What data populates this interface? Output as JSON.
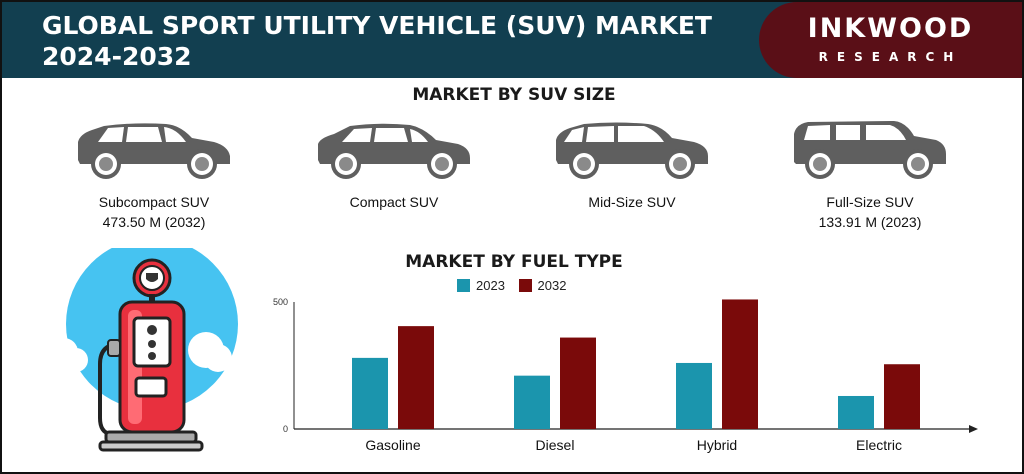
{
  "header": {
    "title": "GLOBAL SPORT UTILITY VEHICLE (SUV) MARKET 2024-2032"
  },
  "logo": {
    "name": "INKWOOD",
    "subtitle": "RESEARCH"
  },
  "suv_size": {
    "title": "MARKET BY SUV SIZE",
    "items": [
      {
        "name": "Subcompact SUV",
        "value": "473.50 M (2032)",
        "icon": "subcompact-suv-icon"
      },
      {
        "name": "Compact SUV",
        "value": "",
        "icon": "compact-suv-icon"
      },
      {
        "name": "Mid-Size SUV",
        "value": "",
        "icon": "midsize-suv-icon"
      },
      {
        "name": "Full-Size SUV",
        "value": "133.91 M (2023)",
        "icon": "fullsize-suv-icon"
      }
    ]
  },
  "fuel_type": {
    "title": "MARKET BY FUEL TYPE",
    "icon": "fuel-pump-icon"
  },
  "colors": {
    "header": "#123f50",
    "logo_panel": "#5a0f17",
    "series_2023": "#1b95ad",
    "series_2032": "#7a0a0a",
    "car": "#5f5f5f"
  },
  "chart_data": {
    "type": "bar",
    "title": "MARKET BY FUEL TYPE",
    "categories": [
      "Gasoline",
      "Diesel",
      "Hybrid",
      "Electric"
    ],
    "series": [
      {
        "name": "2023",
        "values": [
          280,
          210,
          260,
          130
        ],
        "color": "#1b95ad"
      },
      {
        "name": "2032",
        "values": [
          405,
          360,
          510,
          255
        ],
        "color": "#7a0a0a"
      }
    ],
    "yticks": [
      0,
      500
    ],
    "ylim": [
      0,
      500
    ],
    "legend": "top",
    "grid": false,
    "xlabel": "",
    "ylabel": ""
  }
}
